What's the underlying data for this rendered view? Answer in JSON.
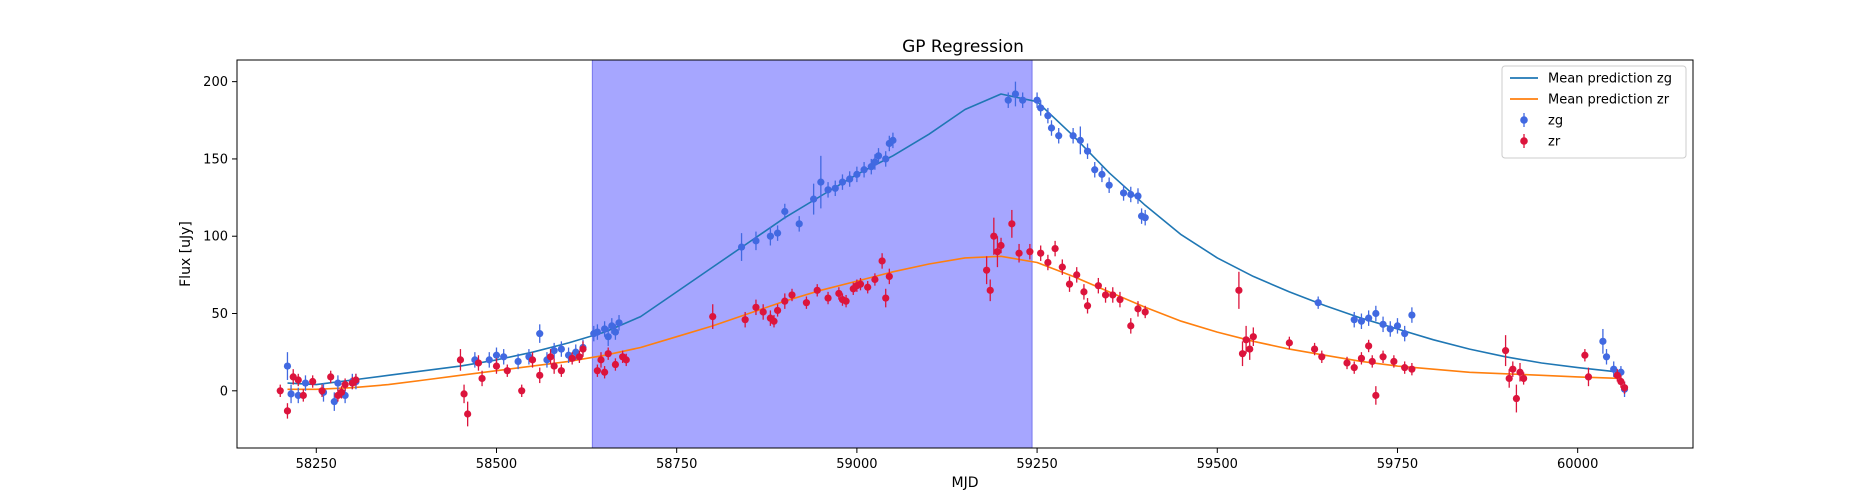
{
  "chart_data": {
    "type": "scatter",
    "title": "GP Regression",
    "xlabel": "MJD",
    "ylabel": "Flux [uJy]",
    "xlim": [
      58140,
      60160
    ],
    "ylim": [
      -37,
      214
    ],
    "xticks": [
      58250,
      58500,
      58750,
      59000,
      59250,
      59500,
      59750,
      60000
    ],
    "yticks": [
      0,
      50,
      100,
      150,
      200
    ],
    "legend_position": "top-right",
    "shaded_region": {
      "x_start": 58633,
      "x_end": 59243,
      "color": "#a6a6ff"
    },
    "series": [
      {
        "name": "Mean prediction zg",
        "kind": "line",
        "color": "#1f77b4",
        "x": [
          58210,
          58250,
          58300,
          58350,
          58400,
          58450,
          58500,
          58550,
          58600,
          58650,
          58700,
          58750,
          58800,
          58850,
          58900,
          58950,
          59000,
          59050,
          59100,
          59150,
          59200,
          59250,
          59300,
          59350,
          59400,
          59450,
          59500,
          59550,
          59600,
          59650,
          59700,
          59750,
          59800,
          59850,
          59900,
          59950,
          60000,
          60060
        ],
        "values": [
          5,
          4,
          7,
          10,
          13,
          16,
          20,
          25,
          31,
          38,
          48,
          64,
          80,
          96,
          112,
          126,
          140,
          152,
          166,
          182,
          192,
          187,
          165,
          141,
          120,
          101,
          86,
          74,
          64,
          55,
          47,
          40,
          33,
          27,
          22,
          18,
          15,
          12
        ]
      },
      {
        "name": "Mean prediction zr",
        "kind": "line",
        "color": "#ff7f0e",
        "x": [
          58210,
          58250,
          58300,
          58350,
          58400,
          58450,
          58500,
          58550,
          58600,
          58650,
          58700,
          58750,
          58800,
          58850,
          58900,
          58950,
          59000,
          59050,
          59100,
          59150,
          59200,
          59250,
          59300,
          59350,
          59400,
          59450,
          59500,
          59550,
          59600,
          59650,
          59700,
          59750,
          59800,
          59850,
          59900,
          59950,
          60000,
          60060
        ],
        "values": [
          1,
          1,
          2,
          4,
          7,
          10,
          13,
          16,
          19,
          23,
          28,
          35,
          42,
          50,
          58,
          65,
          71,
          77,
          82,
          86,
          87,
          83,
          74,
          64,
          54,
          45,
          38,
          32,
          27,
          23,
          19,
          16,
          14,
          12,
          11,
          10,
          9,
          8
        ]
      },
      {
        "name": "zg",
        "kind": "errorbar",
        "color": "#4169e1",
        "x": [
          58210,
          58215,
          58225,
          58235,
          58260,
          58275,
          58280,
          58290,
          58300,
          58305,
          58470,
          58490,
          58500,
          58510,
          58530,
          58545,
          58560,
          58570,
          58580,
          58590,
          58600,
          58610,
          58620,
          58635,
          58640,
          58650,
          58655,
          58660,
          58665,
          58670,
          58840,
          58860,
          58880,
          58890,
          58900,
          58920,
          58940,
          58950,
          58960,
          58970,
          58980,
          58990,
          59000,
          59010,
          59020,
          59025,
          59030,
          59040,
          59045,
          59050,
          59210,
          59220,
          59230,
          59250,
          59255,
          59265,
          59270,
          59280,
          59300,
          59310,
          59320,
          59330,
          59340,
          59350,
          59370,
          59380,
          59390,
          59395,
          59400,
          59640,
          59690,
          59700,
          59710,
          59720,
          59730,
          59740,
          59750,
          59760,
          59770,
          60035,
          60040,
          60050,
          60060,
          60065
        ],
        "values": [
          16,
          -2,
          -3,
          5,
          -1,
          -7,
          5,
          -3,
          6,
          6,
          20,
          20,
          23,
          22,
          19,
          22,
          37,
          20,
          26,
          27,
          23,
          25,
          28,
          37,
          38,
          40,
          35,
          42,
          38,
          44,
          93,
          97,
          100,
          102,
          116,
          108,
          124,
          135,
          130,
          131,
          135,
          137,
          140,
          143,
          145,
          148,
          152,
          150,
          160,
          162,
          188,
          192,
          188,
          188,
          183,
          178,
          170,
          165,
          165,
          162,
          155,
          143,
          140,
          133,
          128,
          127,
          126,
          113,
          112,
          57,
          46,
          45,
          47,
          50,
          43,
          40,
          42,
          37,
          49,
          32,
          22,
          14,
          12,
          1
        ],
        "errors": [
          9,
          6,
          5,
          5,
          6,
          6,
          5,
          5,
          5,
          5,
          5,
          5,
          5,
          5,
          5,
          5,
          6,
          5,
          5,
          5,
          5,
          5,
          5,
          5,
          5,
          5,
          6,
          5,
          5,
          5,
          9,
          6,
          6,
          5,
          5,
          5,
          10,
          17,
          5,
          5,
          5,
          5,
          5,
          5,
          5,
          5,
          5,
          5,
          5,
          5,
          5,
          8,
          5,
          5,
          5,
          5,
          5,
          5,
          5,
          9,
          5,
          5,
          5,
          5,
          5,
          5,
          5,
          5,
          5,
          4,
          5,
          5,
          5,
          5,
          5,
          5,
          5,
          5,
          5,
          8,
          5,
          5,
          4,
          5
        ]
      },
      {
        "name": "zr",
        "kind": "errorbar",
        "color": "#dc143c",
        "x": [
          58200,
          58210,
          58218,
          58225,
          58232,
          58245,
          58258,
          58270,
          58280,
          58285,
          58290,
          58300,
          58305,
          58450,
          58455,
          58460,
          58475,
          58480,
          58500,
          58515,
          58535,
          58550,
          58560,
          58575,
          58580,
          58590,
          58605,
          58615,
          58620,
          58640,
          58645,
          58650,
          58655,
          58665,
          58675,
          58680,
          58800,
          58845,
          58860,
          58870,
          58880,
          58885,
          58890,
          58900,
          58910,
          58930,
          58945,
          58960,
          58975,
          58980,
          58985,
          58995,
          59000,
          59005,
          59015,
          59025,
          59035,
          59040,
          59045,
          59180,
          59185,
          59190,
          59195,
          59200,
          59215,
          59225,
          59240,
          59255,
          59265,
          59275,
          59285,
          59295,
          59305,
          59315,
          59320,
          59335,
          59345,
          59355,
          59365,
          59380,
          59390,
          59400,
          59530,
          59535,
          59540,
          59545,
          59550,
          59600,
          59635,
          59645,
          59680,
          59690,
          59700,
          59710,
          59715,
          59720,
          59730,
          59745,
          59760,
          59770,
          59900,
          59905,
          59910,
          59915,
          59920,
          59925,
          60010,
          60015,
          60055,
          60060,
          60065
        ],
        "values": [
          0,
          -13,
          9,
          7,
          -3,
          6,
          0,
          9,
          -3,
          -1,
          4,
          5,
          7,
          20,
          -2,
          -15,
          18,
          8,
          16,
          13,
          0,
          20,
          10,
          22,
          16,
          13,
          21,
          22,
          27,
          13,
          20,
          12,
          24,
          17,
          22,
          20,
          48,
          46,
          54,
          51,
          47,
          45,
          52,
          58,
          62,
          57,
          65,
          60,
          63,
          59,
          58,
          66,
          68,
          69,
          67,
          72,
          84,
          60,
          74,
          78,
          65,
          100,
          90,
          94,
          108,
          89,
          90,
          89,
          83,
          92,
          80,
          69,
          75,
          64,
          55,
          68,
          62,
          62,
          59,
          42,
          53,
          51,
          65,
          24,
          33,
          27,
          35,
          31,
          27,
          22,
          18,
          15,
          21,
          29,
          19,
          -3,
          22,
          19,
          15,
          14,
          26,
          8,
          14,
          -5,
          12,
          8,
          23,
          9,
          10,
          6,
          2
        ],
        "errors": [
          4,
          5,
          5,
          4,
          4,
          4,
          4,
          4,
          4,
          4,
          4,
          4,
          4,
          7,
          6,
          8,
          5,
          5,
          5,
          4,
          4,
          5,
          5,
          5,
          5,
          4,
          4,
          4,
          5,
          4,
          5,
          4,
          4,
          4,
          4,
          4,
          8,
          5,
          5,
          5,
          5,
          4,
          4,
          5,
          4,
          4,
          4,
          4,
          4,
          4,
          4,
          4,
          4,
          4,
          4,
          4,
          5,
          6,
          5,
          9,
          7,
          12,
          10,
          5,
          9,
          6,
          5,
          5,
          5,
          5,
          5,
          5,
          5,
          5,
          5,
          5,
          5,
          5,
          5,
          5,
          5,
          4,
          12,
          8,
          9,
          7,
          6,
          4,
          4,
          4,
          4,
          4,
          4,
          4,
          4,
          6,
          4,
          4,
          4,
          4,
          10,
          6,
          5,
          9,
          6,
          4,
          4,
          6,
          4,
          4,
          4
        ]
      }
    ]
  }
}
